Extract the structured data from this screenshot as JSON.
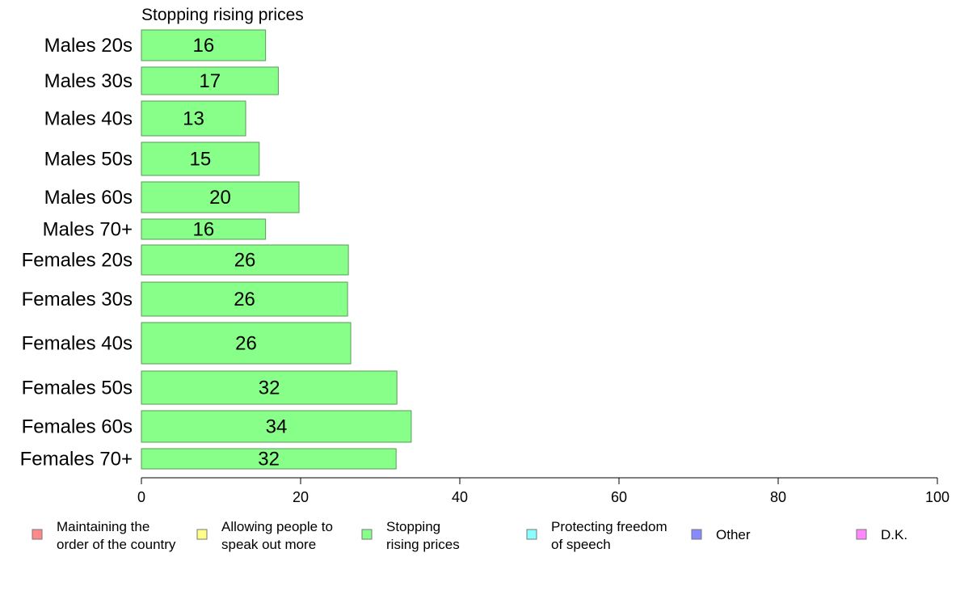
{
  "chart_data": {
    "type": "bar",
    "orientation": "horizontal",
    "title": "Stopping rising prices",
    "categories": [
      "Males 20s",
      "Males 30s",
      "Males 40s",
      "Males 50s",
      "Males 60s",
      "Males 70+",
      "Females 20s",
      "Females 30s",
      "Females 40s",
      "Females 50s",
      "Females 60s",
      "Females 70+"
    ],
    "series": [
      {
        "name": "Stopping rising prices",
        "color": "#88ff88",
        "values": [
          15.6,
          17.2,
          13.1,
          14.8,
          19.8,
          15.6,
          26.0,
          25.9,
          26.3,
          32.1,
          33.9,
          32.0
        ]
      }
    ],
    "value_labels": [
      "16",
      "17",
      "13",
      "15",
      "20",
      "16",
      "26",
      "26",
      "26",
      "32",
      "34",
      "32"
    ],
    "xlim": [
      0,
      100
    ],
    "xticks": [
      0,
      20,
      40,
      60,
      80,
      100
    ],
    "grid": false,
    "legend_position": "bottom",
    "legend": [
      {
        "label_lines": [
          "Maintaining the",
          "order of the country"
        ],
        "color": "#ff8888"
      },
      {
        "label_lines": [
          "Allowing people to",
          "speak out more"
        ],
        "color": "#ffff88"
      },
      {
        "label_lines": [
          "Stopping",
          "rising prices"
        ],
        "color": "#88ff88"
      },
      {
        "label_lines": [
          "Protecting freedom",
          "of speech"
        ],
        "color": "#88ffff"
      },
      {
        "label_lines": [
          "Other"
        ],
        "color": "#8888ff"
      },
      {
        "label_lines": [
          "D.K."
        ],
        "color": "#ff88ff"
      }
    ]
  }
}
